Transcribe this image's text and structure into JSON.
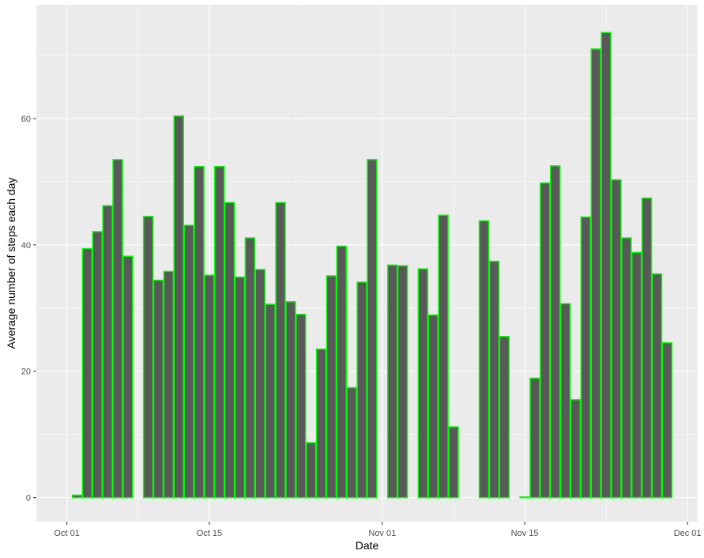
{
  "chart_data": {
    "type": "bar",
    "title": "",
    "xlabel": "Date",
    "ylabel": "Average number of steps each day",
    "x_axis": {
      "type": "date",
      "range": [
        "2012-09-28",
        "2012-12-02"
      ],
      "ticks": [
        {
          "date": "2012-10-01",
          "label": "Oct 01"
        },
        {
          "date": "2012-10-15",
          "label": "Oct 15"
        },
        {
          "date": "2012-11-01",
          "label": "Nov 01"
        },
        {
          "date": "2012-11-15",
          "label": "Nov 15"
        },
        {
          "date": "2012-12-01",
          "label": "Dec 01"
        }
      ]
    },
    "y_axis": {
      "range": [
        -3.8,
        78
      ],
      "ticks": [
        0,
        20,
        40,
        60
      ]
    },
    "grid": true,
    "colors": {
      "panel": "#ebebeb",
      "grid": "#ffffff",
      "bar_fill": "#595959",
      "bar_outline": "#00ff00"
    },
    "series": [
      {
        "x": [
          "2012-10-02",
          "2012-10-03",
          "2012-10-04",
          "2012-10-05",
          "2012-10-06",
          "2012-10-07",
          "2012-10-09",
          "2012-10-10",
          "2012-10-11",
          "2012-10-12",
          "2012-10-13",
          "2012-10-14",
          "2012-10-15",
          "2012-10-16",
          "2012-10-17",
          "2012-10-18",
          "2012-10-19",
          "2012-10-20",
          "2012-10-21",
          "2012-10-22",
          "2012-10-23",
          "2012-10-24",
          "2012-10-25",
          "2012-10-26",
          "2012-10-27",
          "2012-10-28",
          "2012-10-29",
          "2012-10-30",
          "2012-10-31",
          "2012-11-02",
          "2012-11-03",
          "2012-11-05",
          "2012-11-06",
          "2012-11-07",
          "2012-11-08",
          "2012-11-11",
          "2012-11-12",
          "2012-11-13",
          "2012-11-15",
          "2012-11-16",
          "2012-11-17",
          "2012-11-18",
          "2012-11-19",
          "2012-11-20",
          "2012-11-21",
          "2012-11-22",
          "2012-11-23",
          "2012-11-24",
          "2012-11-25",
          "2012-11-26",
          "2012-11-27",
          "2012-11-28",
          "2012-11-29"
        ],
        "values": [
          0.4,
          39.4,
          42.1,
          46.2,
          53.5,
          38.2,
          44.5,
          34.4,
          35.8,
          60.4,
          43.1,
          52.4,
          35.2,
          52.4,
          46.7,
          34.9,
          41.1,
          36.1,
          30.6,
          46.7,
          31.0,
          29.0,
          8.7,
          23.5,
          35.1,
          39.8,
          17.4,
          34.1,
          53.5,
          36.8,
          36.7,
          36.2,
          28.9,
          44.7,
          11.2,
          43.8,
          37.4,
          25.5,
          0.1,
          18.9,
          49.8,
          52.5,
          30.7,
          15.5,
          44.4,
          71.0,
          73.6,
          50.3,
          41.1,
          38.8,
          47.4,
          35.4,
          24.5
        ]
      }
    ]
  }
}
